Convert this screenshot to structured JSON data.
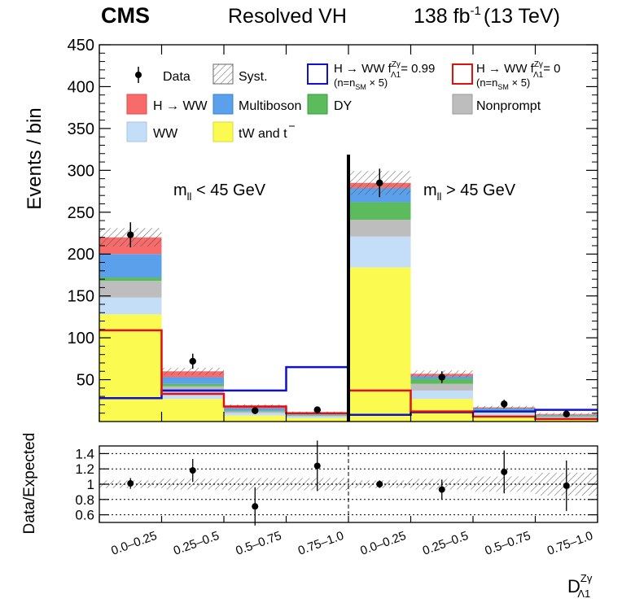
{
  "header": {
    "experiment": "CMS",
    "analysis": "Resolved VH",
    "lumi": "138 fb",
    "lumi_sup": "-1",
    "energy": "(13 TeV)"
  },
  "colors": {
    "hww": "#f76b6b",
    "multiboson": "#5aa0ea",
    "dy": "#5cbb5c",
    "nonprompt": "#bdbdbd",
    "ww": "#c4def7",
    "top": "#fafa50",
    "sig1": "#1010d0",
    "sig2": "#e01010"
  },
  "chart_data": {
    "type": "bar",
    "stacked": true,
    "ylabel": "Events / bin",
    "ylim": [
      0,
      450
    ],
    "yticks": [
      50,
      100,
      150,
      200,
      250,
      300,
      350,
      400,
      450
    ],
    "x_title_main": "D",
    "x_title_sup": "Zγ",
    "x_title_sub": "Λ1",
    "categories": [
      "0.0–0.25",
      "0.25–0.5",
      "0.5–0.75",
      "0.75–1.0",
      "0.0–0.25",
      "0.25–0.5",
      "0.5–0.75",
      "0.75–1.0"
    ],
    "region_labels": [
      {
        "main": "m",
        "sub": "ll",
        "rest": " < 45 GeV"
      },
      {
        "main": "m",
        "sub": "ll",
        "rest": " > 45 GeV"
      }
    ],
    "series": [
      {
        "name": "tW and tt̄",
        "color_key": "top",
        "values": [
          128,
          27,
          7,
          4,
          184,
          27,
          7,
          3
        ]
      },
      {
        "name": "WW",
        "color_key": "ww",
        "values": [
          20,
          8,
          3,
          2,
          37,
          10,
          4,
          2
        ]
      },
      {
        "name": "Nonprompt",
        "color_key": "nonprompt",
        "values": [
          20,
          7,
          2,
          1,
          20,
          8,
          2,
          1
        ]
      },
      {
        "name": "DY",
        "color_key": "dy",
        "values": [
          4,
          3,
          1,
          1,
          21,
          6,
          1,
          1
        ]
      },
      {
        "name": "Multiboson",
        "color_key": "multiboson",
        "values": [
          28,
          8,
          3,
          1,
          17,
          3,
          2,
          1
        ]
      },
      {
        "name": "H → WW",
        "color_key": "hww",
        "values": [
          20,
          7,
          3,
          2,
          6,
          3,
          1,
          1
        ]
      }
    ],
    "total_expected": [
      220,
      60,
      19,
      11,
      285,
      57,
      17,
      9
    ],
    "syst_rel": [
      0.05,
      0.07,
      0.08,
      0.08,
      0.05,
      0.07,
      0.1,
      0.15
    ],
    "data": {
      "name": "Data",
      "values": [
        223,
        72,
        13,
        14,
        285,
        53,
        21,
        9
      ],
      "errors": [
        15,
        9,
        4,
        4,
        17,
        7,
        5,
        3
      ]
    },
    "signal_lines": [
      {
        "name": "H → WW f",
        "coupling_sup": "Zγ",
        "coupling_sub": "Λ1",
        "value_text": "= 0.99",
        "note": "(n=n",
        "note_sub": "SM",
        "note_rest": " × 5)",
        "color_key": "sig1",
        "values": [
          28,
          37,
          37,
          65,
          8,
          11,
          12,
          14
        ]
      },
      {
        "name": "H → WW f",
        "coupling_sup": "Zγ",
        "coupling_sub": "Λ1",
        "value_text": "= 0",
        "note": "(n=n",
        "note_sub": "SM",
        "note_rest": " × 5)",
        "color_key": "sig2",
        "values": [
          109,
          33,
          18,
          10,
          37,
          12,
          6,
          3
        ]
      }
    ],
    "legend_labels": {
      "data": "Data",
      "syst": "Syst.",
      "hww": "H → WW",
      "multiboson": "Multiboson",
      "dy": "DY",
      "nonprompt": "Nonprompt",
      "ww": "WW",
      "top_main": "tW and t",
      "top_bar": "t"
    },
    "ratio": {
      "ylabel": "Data/Expected",
      "ylim": [
        0.5,
        1.5
      ],
      "yticks": [
        0.6,
        0.8,
        1,
        1.2,
        1.4
      ],
      "ytick_labels": [
        "0.6",
        "0.8",
        "1",
        "1.2",
        "1.4"
      ],
      "values": [
        1.01,
        1.18,
        0.71,
        1.24,
        1.0,
        0.93,
        1.16,
        0.98
      ],
      "errors": [
        0.07,
        0.15,
        0.25,
        0.33,
        0.05,
        0.13,
        0.28,
        0.33
      ]
    }
  }
}
